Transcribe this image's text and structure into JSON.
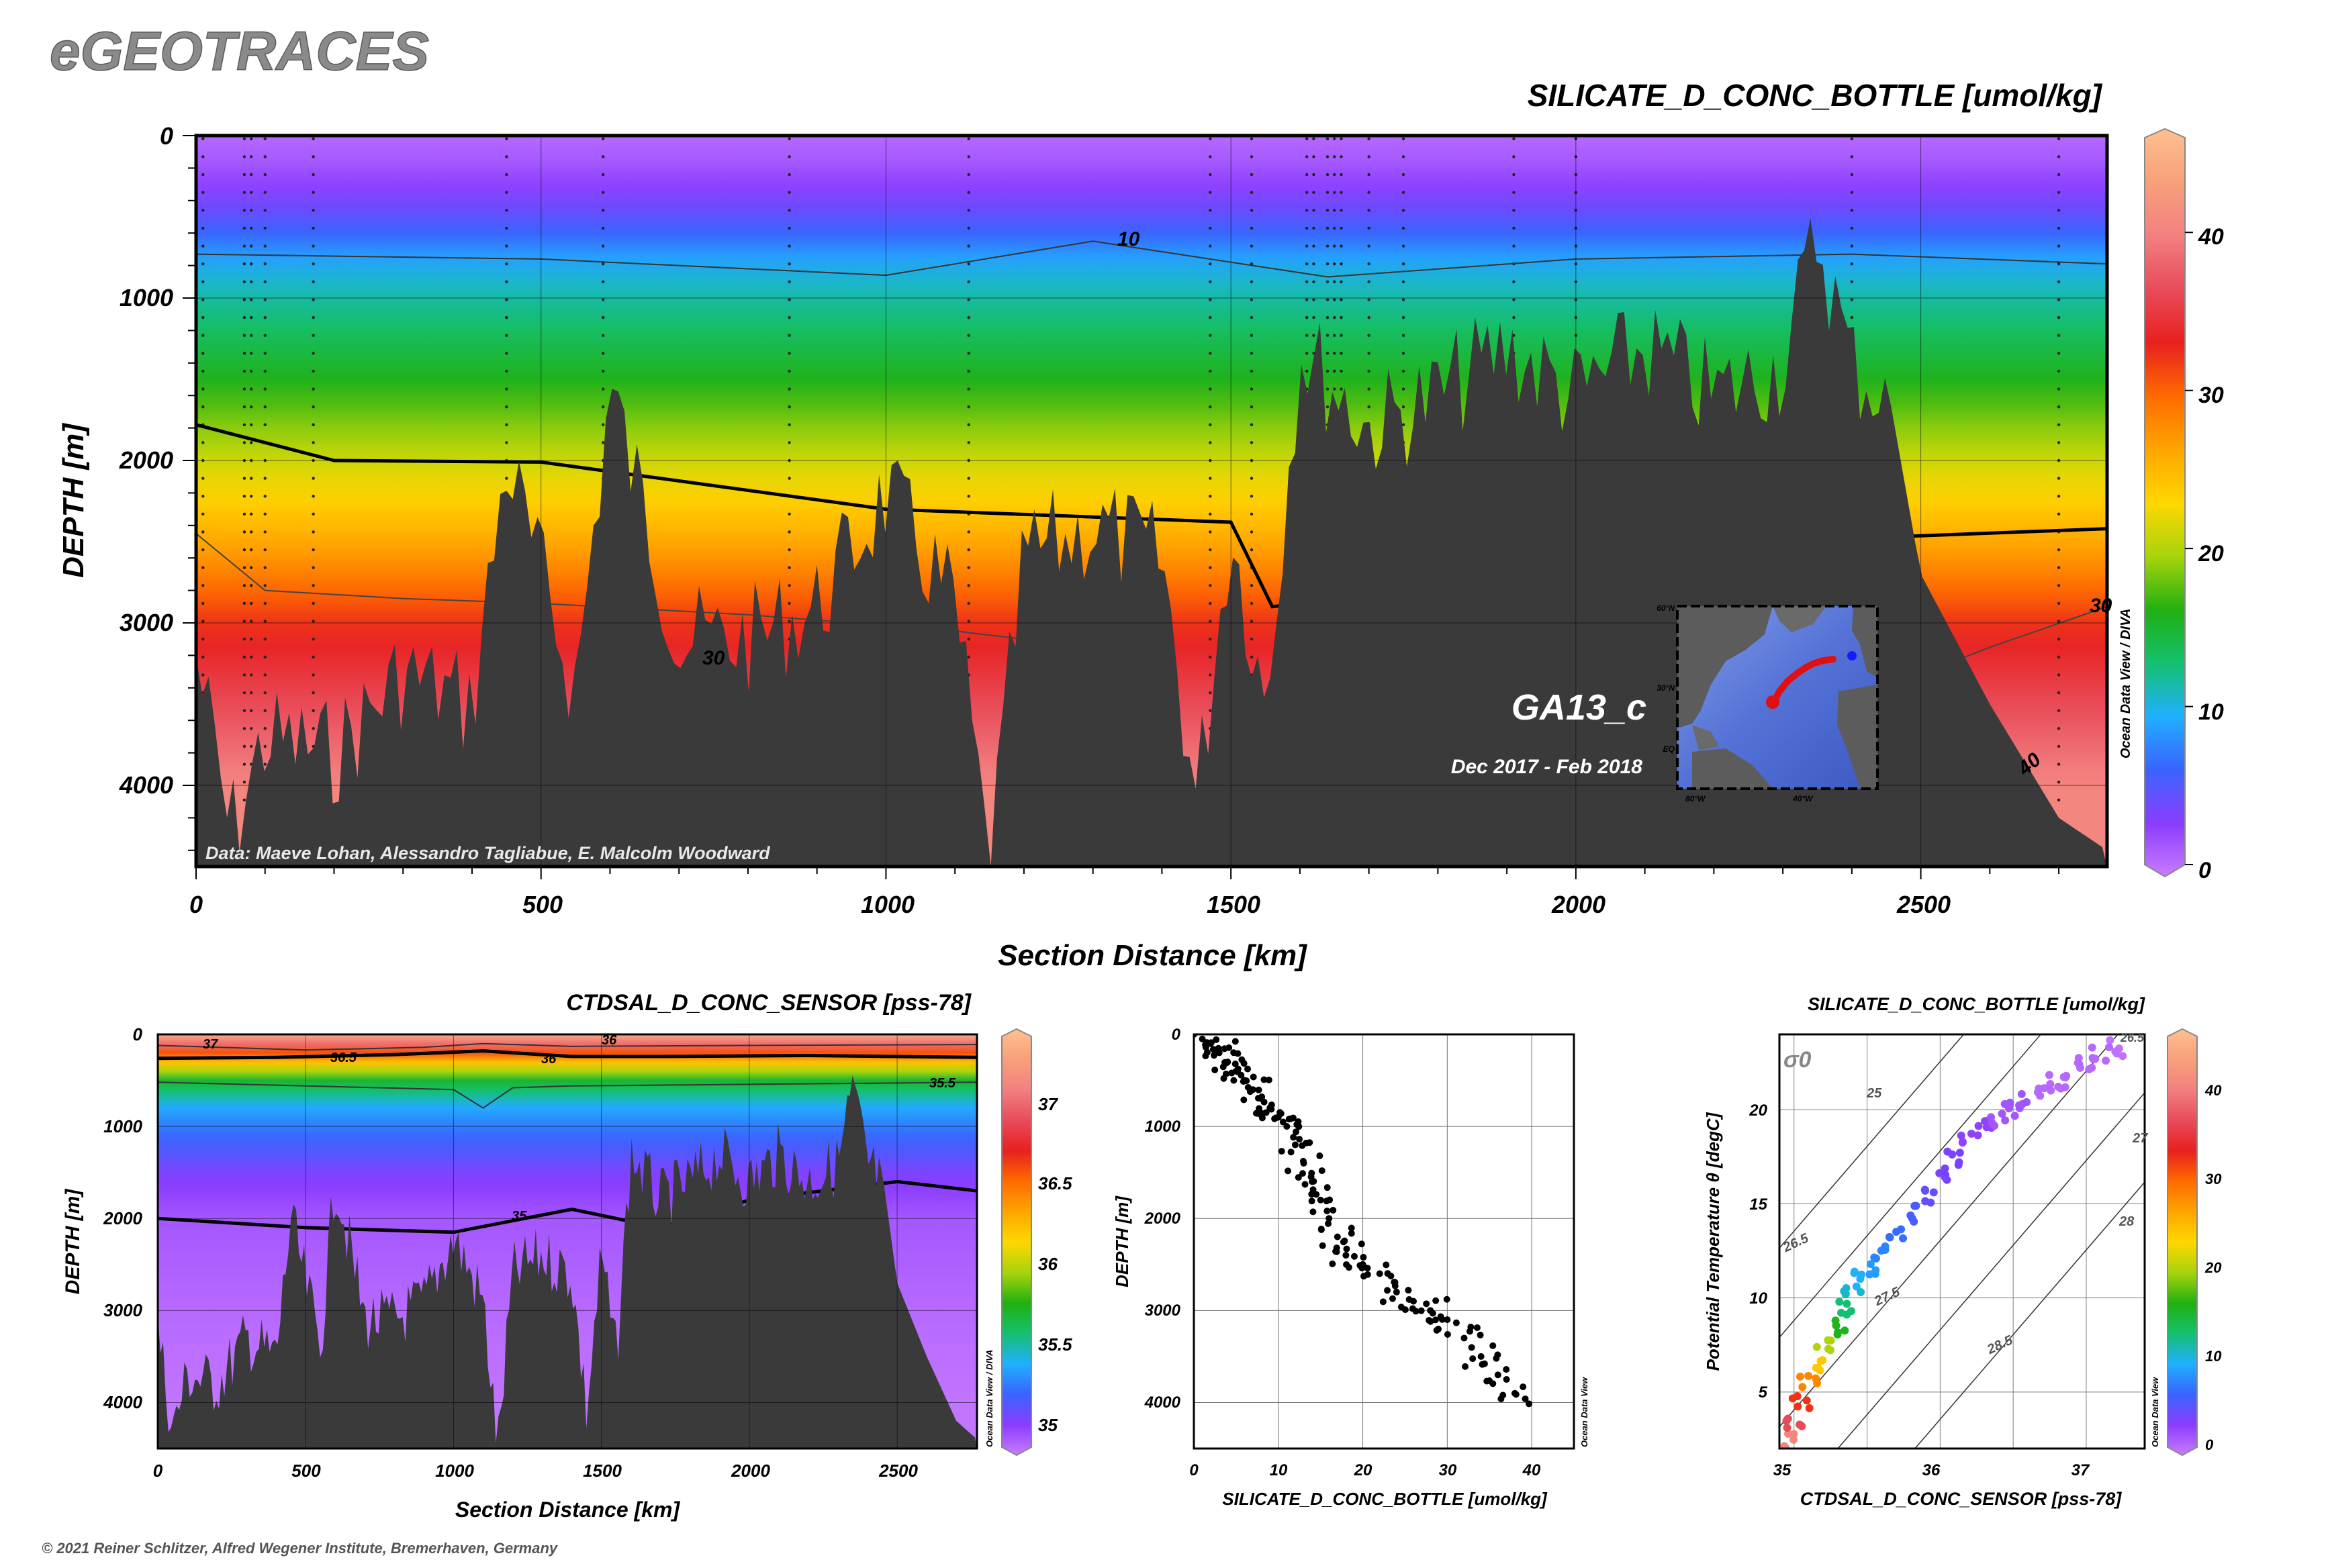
{
  "brand": "eGEOTRACES",
  "copyright": "© 2021 Reiner Schlitzer, Alfred Wegener Institute, Bremerhaven, Germany",
  "colors": {
    "seafloor": "#3a3a3a",
    "scale": [
      "#c97cff",
      "#8a3cff",
      "#3a63ff",
      "#1fb0ff",
      "#14c06e",
      "#22b010",
      "#a8d40c",
      "#ffd700",
      "#ffa500",
      "#ff6a00",
      "#e82020",
      "#e84c5a",
      "#f28080",
      "#f7a07a",
      "#ffc090"
    ]
  },
  "main": {
    "title": "SILICATE_D_CONC_BOTTLE [umol/kg]",
    "xlabel": "Section Distance [km]",
    "ylabel": "DEPTH [m]",
    "credit": "Data: Maeve Lohan, Alessandro Tagliabue, E. Malcolm Woodward",
    "cruise": "GA13_c",
    "period": "Dec 2017 - Feb 2018",
    "odv_label": "Ocean Data View / DIVA",
    "xticks": [
      "0",
      "500",
      "1000",
      "1500",
      "2000",
      "2500"
    ],
    "yticks": [
      "0",
      "1000",
      "2000",
      "3000",
      "4000"
    ],
    "cbar_ticks": [
      "40",
      "30",
      "20",
      "10",
      "0"
    ],
    "contour_labels": [
      "10",
      "30",
      "30",
      "40"
    ],
    "map_ticks": {
      "lat": [
        "60°N",
        "30°N",
        "EQ"
      ],
      "lon": [
        "80°W",
        "40°W"
      ]
    }
  },
  "sal": {
    "title": "CTDSAL_D_CONC_SENSOR [pss-78]",
    "xlabel": "Section Distance [km]",
    "ylabel": "DEPTH [m]",
    "odv_label": "Ocean Data View / DIVA",
    "xticks": [
      "0",
      "500",
      "1000",
      "1500",
      "2000",
      "2500"
    ],
    "yticks": [
      "0",
      "1000",
      "2000",
      "3000",
      "4000"
    ],
    "cbar_ticks": [
      "37",
      "36.5",
      "36",
      "35.5",
      "35"
    ],
    "contour_labels": [
      "37",
      "36.5",
      "36",
      "36",
      "35.5",
      "35"
    ]
  },
  "scatter": {
    "xlabel": "SILICATE_D_CONC_BOTTLE [umol/kg]",
    "ylabel": "DEPTH [m]",
    "odv_label": "Ocean Data View",
    "xticks": [
      "0",
      "10",
      "20",
      "30",
      "40"
    ],
    "yticks": [
      "0",
      "1000",
      "2000",
      "3000",
      "4000"
    ]
  },
  "ts": {
    "title": "SILICATE_D_CONC_BOTTLE [umol/kg]",
    "xlabel": "CTDSAL_D_CONC_SENSOR [pss-78]",
    "ylabel": "Potential Temperature θ [degC]",
    "sigma": "σ0",
    "odv_label": "Ocean Data View",
    "xticks": [
      "35",
      "36",
      "37"
    ],
    "yticks": [
      "5",
      "10",
      "15",
      "20"
    ],
    "cbar_ticks": [
      "40",
      "30",
      "20",
      "10",
      "0"
    ],
    "iso_labels": [
      "25",
      "26.5",
      "27.5",
      "28.5",
      "27",
      "28",
      "26.5"
    ]
  },
  "chart_data": [
    {
      "type": "heatmap",
      "title": "SILICATE_D_CONC_BOTTLE [umol/kg]",
      "xlabel": "Section Distance [km]",
      "ylabel": "DEPTH [m]",
      "xlim": [
        0,
        2770
      ],
      "ylim": [
        4500,
        0
      ],
      "colorbar": {
        "min": 0,
        "max": 46,
        "ticks": [
          0,
          10,
          20,
          30,
          40
        ]
      },
      "silicate_profile": {
        "depth_m": [
          0,
          200,
          500,
          800,
          1000,
          1500,
          2000,
          2500,
          3000,
          4000
        ],
        "value": [
          1,
          2,
          5,
          10,
          12,
          16,
          21,
          26,
          32,
          40
        ]
      },
      "contour_10_depth_m": {
        "x": [
          0,
          500,
          1000,
          1300,
          1640,
          2000,
          2400,
          2770
        ],
        "y": [
          730,
          760,
          860,
          650,
          870,
          760,
          730,
          790
        ]
      },
      "contour_20_depth_m": {
        "x": [
          0,
          200,
          500,
          1000,
          1500,
          1560,
          2400,
          2770
        ],
        "y": [
          1780,
          2000,
          2010,
          2300,
          2380,
          2900,
          2480,
          2420
        ]
      },
      "seafloor_depth_m": {
        "x": [
          0,
          50,
          100,
          200,
          300,
          400,
          450,
          550,
          600,
          700,
          800,
          900,
          1000,
          1100,
          1150,
          1200,
          1300,
          1400,
          1450,
          1500,
          1550,
          1600,
          1700,
          1800,
          1900,
          2000,
          2100,
          2200,
          2300,
          2350,
          2400,
          2450,
          2500,
          2600,
          2700,
          2770
        ],
        "y": [
          3100,
          4200,
          3600,
          3700,
          3200,
          3400,
          1900,
          3300,
          1450,
          3000,
          3000,
          2800,
          2100,
          2800,
          4400,
          2500,
          2300,
          2500,
          4000,
          2300,
          3400,
          1200,
          1700,
          1500,
          1200,
          1500,
          1200,
          1500,
          1300,
          500,
          1300,
          1500,
          2700,
          3500,
          4200,
          4400
        ]
      },
      "annotations": [
        "GA13_c",
        "Dec 2017 - Feb 2018",
        "Data: Maeve Lohan, Alessandro Tagliabue, E. Malcolm Woodward"
      ]
    },
    {
      "type": "heatmap",
      "title": "CTDSAL_D_CONC_SENSOR [pss-78]",
      "xlabel": "Section Distance [km]",
      "ylabel": "DEPTH [m]",
      "xlim": [
        0,
        2770
      ],
      "ylim": [
        4500,
        0
      ],
      "colorbar": {
        "min": 34.9,
        "max": 37.3,
        "ticks": [
          35,
          35.5,
          36,
          36.5,
          37
        ]
      },
      "salinity_profile": {
        "depth_m": [
          0,
          100,
          250,
          500,
          800,
          1000,
          1500,
          2000,
          3000,
          4000
        ],
        "value": [
          37.2,
          36.9,
          36.3,
          35.7,
          35.4,
          35.3,
          35.1,
          35.0,
          34.95,
          34.92
        ]
      },
      "contour_35_depth_m": {
        "x": [
          0,
          500,
          1000,
          1400,
          1700,
          2000,
          2500,
          2770
        ],
        "y": [
          2000,
          2100,
          2150,
          1900,
          2100,
          1800,
          1600,
          1700
        ]
      }
    },
    {
      "type": "scatter",
      "xlabel": "SILICATE_D_CONC_BOTTLE [umol/kg]",
      "ylabel": "DEPTH [m]",
      "xlim": [
        0,
        45
      ],
      "ylim": [
        4500,
        0
      ],
      "x": [
        0,
        1,
        2,
        3,
        4,
        5,
        6,
        7,
        8,
        9,
        10,
        11,
        12,
        13,
        14,
        15,
        16,
        17,
        18,
        20,
        22,
        24,
        26,
        28,
        30,
        32,
        34,
        36,
        38
      ],
      "y": [
        0,
        50,
        100,
        200,
        300,
        400,
        500,
        600,
        700,
        800,
        900,
        1000,
        1200,
        1400,
        1600,
        1800,
        2000,
        2200,
        2400,
        2500,
        2600,
        2800,
        2900,
        3000,
        3100,
        3300,
        3500,
        3700,
        3900
      ]
    },
    {
      "type": "scatter",
      "title": "SILICATE_D_CONC_BOTTLE [umol/kg]",
      "xlabel": "CTDSAL_D_CONC_SENSOR [pss-78]",
      "ylabel": "Potential Temperature θ [degC]",
      "xlim": [
        34.9,
        37.4
      ],
      "ylim": [
        2,
        24
      ],
      "colorbar": {
        "min": 0,
        "max": 46,
        "ticks": [
          0,
          10,
          20,
          30,
          40
        ]
      },
      "x": [
        34.95,
        35.0,
        35.05,
        35.1,
        35.15,
        35.2,
        35.3,
        35.35,
        35.4,
        35.45,
        35.5,
        35.6,
        35.7,
        35.8,
        35.9,
        36.0,
        36.1,
        36.2,
        36.3,
        36.4,
        36.5,
        36.6,
        36.7,
        36.8,
        36.9,
        37.0,
        37.1,
        37.2
      ],
      "y": [
        2.5,
        3.5,
        4.5,
        5.5,
        6.5,
        7.5,
        8.5,
        9.5,
        10.5,
        11.0,
        11.5,
        12.5,
        13.5,
        14.5,
        15.5,
        16.5,
        17.5,
        18.5,
        19.0,
        19.5,
        20.0,
        20.5,
        21.0,
        21.5,
        22.0,
        22.5,
        23.0,
        23.3
      ],
      "silicate": [
        40,
        36,
        32,
        28,
        24,
        20,
        16,
        13,
        11,
        10,
        9,
        8,
        7,
        6,
        5,
        4,
        4,
        3,
        3,
        2,
        2,
        2,
        1,
        1,
        1,
        1,
        1,
        0.5
      ],
      "isopycnals": [
        25,
        26.5,
        27,
        27.5,
        28,
        28.5
      ]
    }
  ]
}
